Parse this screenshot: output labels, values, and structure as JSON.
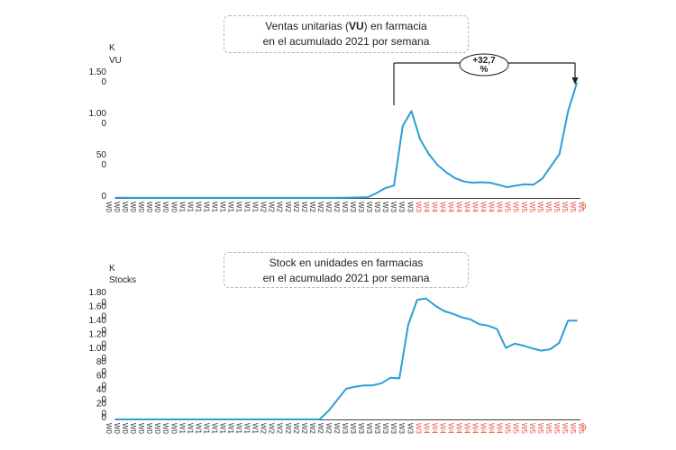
{
  "chart_data": [
    {
      "type": "line",
      "title_parts": [
        "Ventas unitarias (",
        "VU",
        ") en farmacia"
      ],
      "subtitle": "en el acumulado 2021 por semana",
      "unit_line1": "K",
      "unit_line2": "VU",
      "y_tick_labels": [
        {
          "value": 1500,
          "line1": "1.50",
          "line2": "0"
        },
        {
          "value": 1000,
          "line1": "1.00",
          "line2": "0"
        },
        {
          "value": 500,
          "line1": "50",
          "line2": "0"
        },
        {
          "value": 0,
          "line1": "0",
          "line2": ""
        }
      ],
      "ylim": [
        0,
        1500
      ],
      "annotation": {
        "line1": "+32,7",
        "line2": "%",
        "from_index": 38,
        "to_index": 59
      },
      "color": "#2a9fd6",
      "series": [
        {
          "values": [
            2,
            2,
            1,
            1,
            1,
            1,
            1,
            1,
            1,
            1,
            1,
            1,
            1,
            1,
            1,
            1,
            1,
            1,
            1,
            1,
            1,
            1,
            1,
            1,
            1,
            1,
            2,
            4,
            6,
            10,
            60,
            120,
            150,
            870,
            1050,
            710,
            530,
            400,
            310,
            240,
            200,
            185,
            190,
            185,
            160,
            130,
            150,
            165,
            160,
            230,
            380,
            530,
            1050,
            1390
          ]
        }
      ]
    },
    {
      "type": "line",
      "title": "Stock en unidades en farmacias",
      "subtitle": "en el acumulado 2021 por semana",
      "unit_line1": "K",
      "unit_line2": "Stocks",
      "y_tick_labels": [
        {
          "value": 1800,
          "line1": "1.80",
          "line2": "0"
        },
        {
          "value": 1600,
          "line1": "1.60",
          "line2": "0"
        },
        {
          "value": 1400,
          "line1": "1.40",
          "line2": "0"
        },
        {
          "value": 1200,
          "line1": "1.20",
          "line2": "0"
        },
        {
          "value": 1000,
          "line1": "1.00",
          "line2": "0"
        },
        {
          "value": 800,
          "line1": "80",
          "line2": "0"
        },
        {
          "value": 600,
          "line1": "60",
          "line2": "0"
        },
        {
          "value": 400,
          "line1": "40",
          "line2": "0"
        },
        {
          "value": 200,
          "line1": "20",
          "line2": "0"
        },
        {
          "value": 0,
          "line1": "0",
          "line2": ""
        }
      ],
      "ylim": [
        0,
        1800
      ],
      "color": "#2a9fd6",
      "series": [
        {
          "values": [
            0,
            0,
            0,
            0,
            0,
            0,
            0,
            0,
            0,
            0,
            0,
            0,
            0,
            0,
            0,
            0,
            0,
            0,
            0,
            0,
            0,
            0,
            0,
            0,
            120,
            280,
            440,
            470,
            490,
            490,
            520,
            600,
            590,
            1360,
            1720,
            1740,
            1640,
            1560,
            1520,
            1470,
            1440,
            1370,
            1350,
            1300,
            1030,
            1090,
            1060,
            1020,
            990,
            1010,
            1100,
            1420,
            1420
          ]
        }
      ]
    }
  ],
  "x_tick_labels": [
    "W0",
    "W0",
    "W0",
    "W0",
    "W0",
    "W0",
    "W0",
    "W0",
    "W0",
    "W1",
    "W1",
    "W1",
    "W1",
    "W1",
    "W1",
    "W1",
    "W1",
    "W1",
    "W1",
    "W2",
    "W2",
    "W2",
    "W2",
    "W2",
    "W2",
    "W2",
    "W2",
    "W2",
    "W2",
    "W3",
    "W3",
    "W3",
    "W3",
    "W3",
    "W3",
    "W3",
    "W3",
    "W3",
    "W3",
    "W4",
    "W4",
    "W4",
    "W4",
    "W4",
    "W4",
    "W4",
    "W4",
    "W4",
    "W4",
    "W5",
    "W5",
    "W5",
    "W5",
    "W5",
    "W5",
    "W5",
    "W5",
    "W5",
    "W5"
  ],
  "x_tick_label_red_from": 38,
  "x_tick_label_9_suffix": "9",
  "colors": {
    "line": "#2a9fd6",
    "axis": "#444444",
    "red_labels": "#e8503a",
    "annotation": "#222222"
  }
}
